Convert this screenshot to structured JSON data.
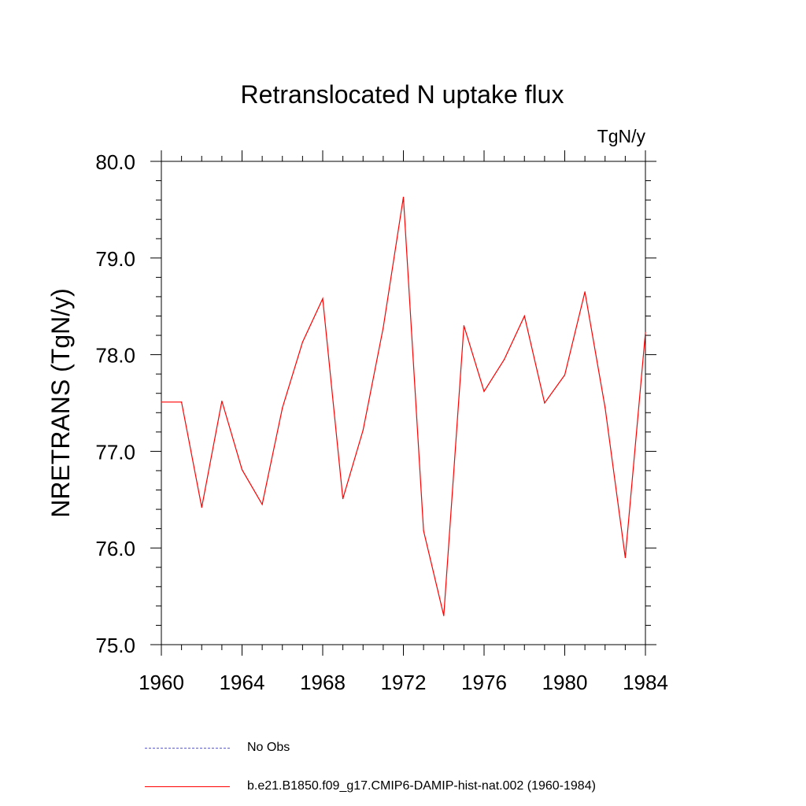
{
  "chart_data": {
    "type": "line",
    "title": "Retranslocated N uptake flux",
    "units": "TgN/y",
    "ylabel": "NRETRANS  (TgN/y)",
    "xlabel": "",
    "xlim": [
      1960,
      1984
    ],
    "ylim": [
      75.0,
      80.0
    ],
    "x_ticks": [
      1960,
      1964,
      1968,
      1972,
      1976,
      1980,
      1984
    ],
    "y_ticks": [
      "75.0",
      "76.0",
      "77.0",
      "78.0",
      "79.0",
      "80.0"
    ],
    "grid": false,
    "series": [
      {
        "name": "b.e21.B1850.f09_g17.CMIP6-DAMIP-hist-nat.002 (1960-1984)",
        "color": "#ff0000",
        "x": [
          1960,
          1961,
          1962,
          1963,
          1964,
          1965,
          1966,
          1967,
          1968,
          1969,
          1970,
          1971,
          1972,
          1973,
          1974,
          1975,
          1976,
          1977,
          1978,
          1979,
          1980,
          1981,
          1982,
          1983,
          1984
        ],
        "values": [
          77.51,
          77.51,
          76.42,
          77.52,
          76.81,
          76.45,
          77.45,
          78.13,
          78.58,
          76.51,
          77.22,
          78.28,
          79.63,
          76.18,
          75.3,
          78.3,
          77.62,
          77.95,
          78.4,
          77.5,
          77.79,
          78.65,
          77.45,
          75.9,
          78.23
        ]
      }
    ]
  },
  "legend": {
    "obs_label": "No Obs",
    "obs_color": "#5a5acd",
    "model_label": "b.e21.B1850.f09_g17.CMIP6-DAMIP-hist-nat.002 (1960-1984)",
    "model_color": "#ff0000"
  }
}
